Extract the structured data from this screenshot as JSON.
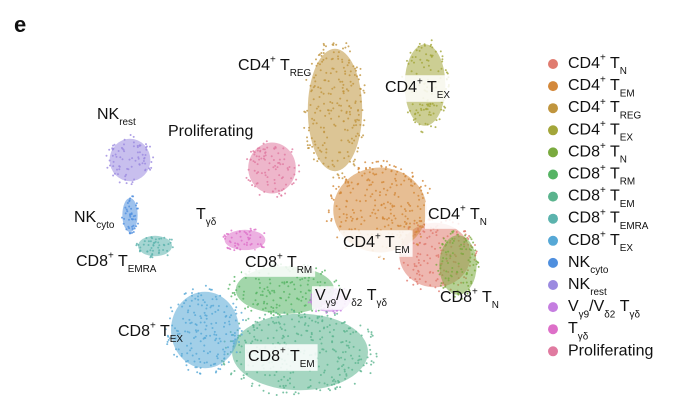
{
  "panel": "e",
  "chart_data": {
    "type": "umap",
    "legend": [
      {
        "runs": [
          {
            "text": "CD4"
          },
          {
            "text": "+",
            "pos": "sup"
          },
          {
            "text": " T"
          },
          {
            "text": "N",
            "pos": "sub"
          }
        ],
        "color": "#e07b6f"
      },
      {
        "runs": [
          {
            "text": "CD4"
          },
          {
            "text": "+",
            "pos": "sup"
          },
          {
            "text": " T"
          },
          {
            "text": "EM",
            "pos": "sub"
          }
        ],
        "color": "#d3883a"
      },
      {
        "runs": [
          {
            "text": "CD4"
          },
          {
            "text": "+",
            "pos": "sup"
          },
          {
            "text": " T"
          },
          {
            "text": "REG",
            "pos": "sub"
          }
        ],
        "color": "#c0953e"
      },
      {
        "runs": [
          {
            "text": "CD4"
          },
          {
            "text": "+",
            "pos": "sup"
          },
          {
            "text": " T"
          },
          {
            "text": "EX",
            "pos": "sub"
          }
        ],
        "color": "#a3a63a"
      },
      {
        "runs": [
          {
            "text": "CD8"
          },
          {
            "text": "+",
            "pos": "sup"
          },
          {
            "text": " T"
          },
          {
            "text": "N",
            "pos": "sub"
          }
        ],
        "color": "#7aaa3e"
      },
      {
        "runs": [
          {
            "text": "CD8"
          },
          {
            "text": "+",
            "pos": "sup"
          },
          {
            "text": " T"
          },
          {
            "text": "RM",
            "pos": "sub"
          }
        ],
        "color": "#56b464"
      },
      {
        "runs": [
          {
            "text": "CD8"
          },
          {
            "text": "+",
            "pos": "sup"
          },
          {
            "text": " T"
          },
          {
            "text": "EM",
            "pos": "sub"
          }
        ],
        "color": "#5bb48e"
      },
      {
        "runs": [
          {
            "text": "CD8"
          },
          {
            "text": "+",
            "pos": "sup"
          },
          {
            "text": " T"
          },
          {
            "text": "EMRA",
            "pos": "sub"
          }
        ],
        "color": "#5bb3ad"
      },
      {
        "runs": [
          {
            "text": "CD8"
          },
          {
            "text": "+",
            "pos": "sup"
          },
          {
            "text": " T"
          },
          {
            "text": "EX",
            "pos": "sub"
          }
        ],
        "color": "#56a8d6"
      },
      {
        "runs": [
          {
            "text": "NK"
          },
          {
            "text": "cyto",
            "pos": "sub"
          }
        ],
        "color": "#4f8fde"
      },
      {
        "runs": [
          {
            "text": "NK"
          },
          {
            "text": "rest",
            "pos": "sub"
          }
        ],
        "color": "#9b8ae0"
      },
      {
        "runs": [
          {
            "text": "V"
          },
          {
            "text": "γ9",
            "pos": "sub"
          },
          {
            "text": "/V"
          },
          {
            "text": "δ2",
            "pos": "sub"
          },
          {
            "text": " T"
          },
          {
            "text": "γδ",
            "pos": "sub"
          }
        ],
        "color": "#c57ee0"
      },
      {
        "runs": [
          {
            "text": "T"
          },
          {
            "text": "γδ",
            "pos": "sub"
          }
        ],
        "color": "#dd6fc8"
      },
      {
        "runs": [
          {
            "text": "Proliferating"
          }
        ],
        "color": "#e07aa0"
      }
    ],
    "cluster_labels": [
      {
        "runs": [
          {
            "text": "CD4"
          },
          {
            "text": "+",
            "pos": "sup"
          },
          {
            "text": " T"
          },
          {
            "text": "REG",
            "pos": "sub"
          }
        ],
        "boxed": false
      },
      {
        "runs": [
          {
            "text": "CD4"
          },
          {
            "text": "+",
            "pos": "sup"
          },
          {
            "text": " T"
          },
          {
            "text": "EX",
            "pos": "sub"
          }
        ],
        "boxed": true
      },
      {
        "runs": [
          {
            "text": "NK"
          },
          {
            "text": "rest",
            "pos": "sub"
          }
        ],
        "boxed": false
      },
      {
        "runs": [
          {
            "text": "Proliferating"
          }
        ],
        "boxed": false
      },
      {
        "runs": [
          {
            "text": "NK"
          },
          {
            "text": "cyto",
            "pos": "sub"
          }
        ],
        "boxed": false
      },
      {
        "runs": [
          {
            "text": "T"
          },
          {
            "text": "γδ",
            "pos": "sub"
          }
        ],
        "boxed": false
      },
      {
        "runs": [
          {
            "text": "CD8"
          },
          {
            "text": "+",
            "pos": "sup"
          },
          {
            "text": " T"
          },
          {
            "text": "EMRA",
            "pos": "sub"
          }
        ],
        "boxed": false
      },
      {
        "runs": [
          {
            "text": "CD4"
          },
          {
            "text": "+",
            "pos": "sup"
          },
          {
            "text": " T"
          },
          {
            "text": "N",
            "pos": "sub"
          }
        ],
        "boxed": true
      },
      {
        "runs": [
          {
            "text": "CD4"
          },
          {
            "text": "+",
            "pos": "sup"
          },
          {
            "text": " T"
          },
          {
            "text": "EM",
            "pos": "sub"
          }
        ],
        "boxed": true
      },
      {
        "runs": [
          {
            "text": "CD8"
          },
          {
            "text": "+",
            "pos": "sup"
          },
          {
            "text": " T"
          },
          {
            "text": "RM",
            "pos": "sub"
          }
        ],
        "boxed": true
      },
      {
        "runs": [
          {
            "text": "V"
          },
          {
            "text": "γ9",
            "pos": "sub"
          },
          {
            "text": "/V"
          },
          {
            "text": "δ2",
            "pos": "sub"
          },
          {
            "text": " T"
          },
          {
            "text": "γδ",
            "pos": "sub"
          }
        ],
        "boxed": true
      },
      {
        "runs": [
          {
            "text": "CD8"
          },
          {
            "text": "+",
            "pos": "sup"
          },
          {
            "text": " T"
          },
          {
            "text": "N",
            "pos": "sub"
          }
        ],
        "boxed": false
      },
      {
        "runs": [
          {
            "text": "CD8"
          },
          {
            "text": "+",
            "pos": "sup"
          },
          {
            "text": " T"
          },
          {
            "text": "EX",
            "pos": "sub"
          }
        ],
        "boxed": false
      },
      {
        "runs": [
          {
            "text": "CD8"
          },
          {
            "text": "+",
            "pos": "sup"
          },
          {
            "text": " T"
          },
          {
            "text": "EM",
            "pos": "sub"
          }
        ],
        "boxed": true
      }
    ]
  }
}
